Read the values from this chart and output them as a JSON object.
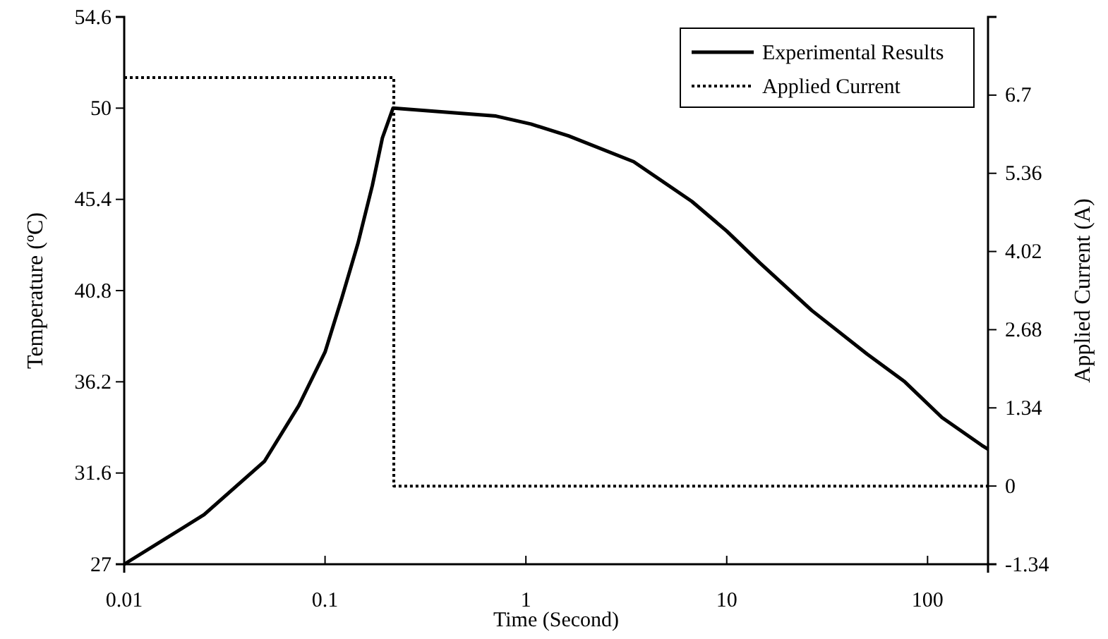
{
  "chart_data": {
    "type": "line",
    "xlabel": "Time (Second)",
    "ylabel": "Temperature (ºC)",
    "y2label": "Applied Current (A)",
    "log": "x",
    "xlim": [
      0.01,
      200
    ],
    "xticks": [
      0.01,
      0.1,
      1,
      10,
      100
    ],
    "ylim": [
      27,
      54.6
    ],
    "yticks": [
      27,
      31.6,
      36.2,
      40.8,
      45.4,
      50,
      54.6
    ],
    "y2lim": [
      -1.34,
      8.04
    ],
    "y2ticks": [
      -1.34,
      0,
      1.34,
      2.68,
      4.02,
      5.36,
      6.7
    ],
    "grid": false,
    "legend": "top right",
    "marker": "none",
    "series": [
      {
        "name": "Experimental Results",
        "color": "#000000",
        "line_style": "solid",
        "x": [
          0.01,
          0.025,
          0.05,
          0.074,
          0.1,
          0.121,
          0.146,
          0.172,
          0.193,
          0.218,
          0.71,
          1.06,
          1.63,
          3.44,
          6.7,
          10,
          14.6,
          26.5,
          50,
          77,
          118,
          186,
          200
        ],
        "values": [
          27,
          29.5,
          32.2,
          35,
          37.7,
          40.4,
          43.2,
          46.1,
          48.5,
          50,
          49.6,
          49.2,
          48.6,
          47.3,
          45.3,
          43.8,
          42.2,
          39.8,
          37.6,
          36.2,
          34.4,
          33,
          32.8
        ]
      },
      {
        "name": "Applied Current",
        "color": "#000000",
        "line_style": "dotted",
        "axis": "y2",
        "x": [
          0.01,
          0.22,
          0.22,
          200
        ],
        "values": [
          7,
          7,
          0,
          0
        ]
      }
    ]
  }
}
